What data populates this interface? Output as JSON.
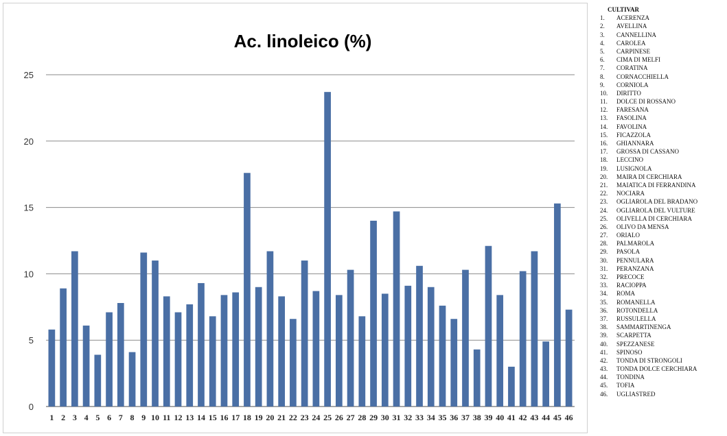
{
  "chart_data": {
    "type": "bar",
    "title": "Ac. linoleico (%)",
    "xlabel": "",
    "ylabel": "",
    "ylim": [
      0,
      25
    ],
    "yticks": [
      "0",
      "5",
      "10",
      "15",
      "20",
      "25"
    ],
    "grid": true,
    "bar_color": "#4a6fa5",
    "categories": [
      "1",
      "2",
      "3",
      "4",
      "5",
      "6",
      "7",
      "8",
      "9",
      "10",
      "11",
      "12",
      "13",
      "14",
      "15",
      "16",
      "17",
      "18",
      "19",
      "20",
      "21",
      "22",
      "23",
      "24",
      "25",
      "26",
      "27",
      "28",
      "29",
      "30",
      "31",
      "32",
      "33",
      "34",
      "35",
      "36",
      "37",
      "38",
      "39",
      "40",
      "41",
      "42",
      "43",
      "44",
      "45",
      "46"
    ],
    "values": [
      5.8,
      8.9,
      11.7,
      6.1,
      3.9,
      7.1,
      7.8,
      4.1,
      11.6,
      11.0,
      8.3,
      7.1,
      7.7,
      9.3,
      6.8,
      8.4,
      8.6,
      17.6,
      9.0,
      11.7,
      8.3,
      6.6,
      11.0,
      8.7,
      23.7,
      8.4,
      10.3,
      6.8,
      14.0,
      8.5,
      14.7,
      9.1,
      10.6,
      9.0,
      7.6,
      6.6,
      10.3,
      4.3,
      12.1,
      8.4,
      3.0,
      10.2,
      11.7,
      4.9,
      15.3,
      7.3
    ],
    "legend_title": "CULTIVAR",
    "legend": [
      {
        "num": "1.",
        "name": "ACERENZA"
      },
      {
        "num": "2.",
        "name": "AVELLINA"
      },
      {
        "num": "3.",
        "name": "CANNELLINA"
      },
      {
        "num": "4.",
        "name": "CAROLEA"
      },
      {
        "num": "5.",
        "name": "CARPINESE"
      },
      {
        "num": "6.",
        "name": "CIMA DI MELFI"
      },
      {
        "num": "7.",
        "name": "CORATINA"
      },
      {
        "num": "8.",
        "name": "CORNACCHIELLA"
      },
      {
        "num": "9.",
        "name": "CORNIOLA"
      },
      {
        "num": "10.",
        "name": "DIRITTO"
      },
      {
        "num": "11.",
        "name": "DOLCE DI ROSSANO"
      },
      {
        "num": "12.",
        "name": "FARESANA"
      },
      {
        "num": "13.",
        "name": "FASOLINA"
      },
      {
        "num": "14.",
        "name": "FAVOLINA"
      },
      {
        "num": "15.",
        "name": "FICAZZOLA"
      },
      {
        "num": "16.",
        "name": "GHIANNARA"
      },
      {
        "num": "17.",
        "name": "GROSSA DI CASSANO"
      },
      {
        "num": "18.",
        "name": "LECCINO"
      },
      {
        "num": "19.",
        "name": "LUSIGNOLA"
      },
      {
        "num": "20.",
        "name": "MAIRA DI CERCHIARA"
      },
      {
        "num": "21.",
        "name": "MAIATICA DI FERRANDINA"
      },
      {
        "num": "22.",
        "name": "NOCIARA"
      },
      {
        "num": "23.",
        "name": "OGLIAROLA DEL BRADANO"
      },
      {
        "num": "24.",
        "name": "OGLIAROLA DEL VULTURE"
      },
      {
        "num": "25.",
        "name": "OLIVELLA DI CERCHIARA"
      },
      {
        "num": "26.",
        "name": "OLIVO DA MENSA"
      },
      {
        "num": "27.",
        "name": "ORIALO"
      },
      {
        "num": "28.",
        "name": "PALMAROLA"
      },
      {
        "num": "29.",
        "name": "PASOLA"
      },
      {
        "num": "30.",
        "name": "PENNULARA"
      },
      {
        "num": "31.",
        "name": "PERANZANA"
      },
      {
        "num": "32.",
        "name": "PRECOCE"
      },
      {
        "num": "33.",
        "name": "RACIOPPA"
      },
      {
        "num": "34.",
        "name": "ROMA"
      },
      {
        "num": "35.",
        "name": "ROMANELLA"
      },
      {
        "num": "36.",
        "name": "ROTONDELLA"
      },
      {
        "num": "37.",
        "name": "RUSSULELLA"
      },
      {
        "num": "38.",
        "name": "SAMMARTINENGA"
      },
      {
        "num": "39.",
        "name": "SCARPETTA"
      },
      {
        "num": "40.",
        "name": "SPEZZANESE"
      },
      {
        "num": "41.",
        "name": "SPINOSO"
      },
      {
        "num": "42.",
        "name": "TONDA DI STRONGOLI"
      },
      {
        "num": "43.",
        "name": "TONDA DOLCE CERCHIARA"
      },
      {
        "num": "44.",
        "name": "TONDINA"
      },
      {
        "num": "45.",
        "name": "TOFIA"
      },
      {
        "num": "46.",
        "name": "UGLIASTRED"
      }
    ]
  }
}
